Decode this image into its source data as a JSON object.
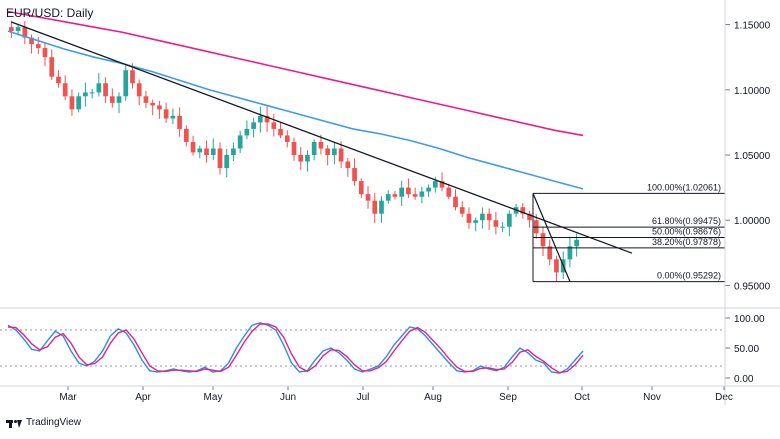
{
  "header": {
    "title": "EUR/USD: Daily"
  },
  "footer": {
    "brand": "TradingView"
  },
  "colors": {
    "candle_up": "#26a69a",
    "candle_down": "#ef5350",
    "ma_fast": "#3d9bf0",
    "ma_slow": "#e91e8c",
    "trendline": "#131722",
    "stoch_k": "#2b8fe6",
    "stoch_d": "#e91e8c"
  },
  "chart_data": [
    {
      "type": "candlestick",
      "title": "EUR/USD: Daily",
      "x_labels": [
        "Mar",
        "Apr",
        "May",
        "Jun",
        "Jul",
        "Aug",
        "Sep",
        "Oct",
        "Nov",
        "Dec"
      ],
      "y_ticks": [
        "1.15000",
        "1.10000",
        "1.05000",
        "1.00000",
        "0.95000"
      ],
      "ylim": [
        0.935,
        1.165
      ],
      "grid": false,
      "ohlc_path": [
        1.145,
        1.148,
        1.14,
        1.135,
        1.132,
        1.125,
        1.11,
        1.105,
        1.095,
        1.085,
        1.095,
        1.098,
        1.098,
        1.105,
        1.095,
        1.09,
        1.095,
        1.115,
        1.105,
        1.095,
        1.09,
        1.088,
        1.085,
        1.078,
        1.08,
        1.07,
        1.06,
        1.052,
        1.055,
        1.05,
        1.055,
        1.04,
        1.05,
        1.055,
        1.065,
        1.07,
        1.075,
        1.08,
        1.075,
        1.07,
        1.065,
        1.06,
        1.05,
        1.045,
        1.05,
        1.06,
        1.055,
        1.05,
        1.055,
        1.045,
        1.04,
        1.03,
        1.02,
        1.015,
        1.005,
        1.015,
        1.02,
        1.018,
        1.025,
        1.02,
        1.018,
        1.022,
        1.025,
        1.03,
        1.025,
        1.018,
        1.01,
        1.005,
        0.998,
        1.0,
        1.005,
        1.0,
        0.995,
        0.995,
        1.005,
        1.01,
        1.005,
        1.0,
        0.99,
        0.98,
        0.97,
        0.96,
        0.97,
        0.98,
        0.985
      ],
      "overlays": [
        {
          "name": "",
          "type": "ma",
          "color": "#e91e8c",
          "values": [
            1.16,
            1.156,
            1.152,
            1.148,
            1.144,
            1.139,
            1.134,
            1.129,
            1.124,
            1.119,
            1.114,
            1.109,
            1.104,
            1.099,
            1.094,
            1.089,
            1.084,
            1.079,
            1.074,
            1.069,
            1.065
          ]
        },
        {
          "name": "",
          "type": "ma",
          "color": "#3d9bf0",
          "values": [
            1.145,
            1.138,
            1.131,
            1.125,
            1.12,
            1.114,
            1.107,
            1.1,
            1.094,
            1.088,
            1.082,
            1.076,
            1.07,
            1.066,
            1.061,
            1.055,
            1.048,
            1.042,
            1.036,
            1.03,
            1.024
          ]
        }
      ],
      "trendline": {
        "from": {
          "bar": 0,
          "price": 1.152
        },
        "to": {
          "bar": 90,
          "price": 0.987
        }
      },
      "fib_levels": [
        {
          "label": "100.00%(1.02061)",
          "price": 1.02061
        },
        {
          "label": "61.80%(0.99475)",
          "price": 0.99475
        },
        {
          "label": "50.00%(0.98676)",
          "price": 0.98676
        },
        {
          "label": "38.20%(0.97878)",
          "price": 0.97878
        },
        {
          "label": "0.00%(0.95292)",
          "price": 0.95292
        }
      ]
    },
    {
      "type": "line",
      "title": "",
      "y_ticks": [
        "100.00",
        "50.00",
        "0.00"
      ],
      "ylim": [
        0,
        100
      ],
      "reference_lines": [
        80,
        20
      ],
      "series": [
        {
          "name": "",
          "color": "#2b8fe6",
          "values": [
            88,
            80,
            65,
            48,
            45,
            62,
            78,
            70,
            45,
            25,
            20,
            28,
            45,
            70,
            82,
            75,
            55,
            30,
            12,
            10,
            12,
            15,
            12,
            10,
            12,
            18,
            10,
            12,
            25,
            50,
            70,
            88,
            92,
            88,
            80,
            55,
            25,
            10,
            12,
            30,
            45,
            50,
            42,
            30,
            15,
            10,
            15,
            20,
            35,
            55,
            70,
            85,
            82,
            70,
            55,
            40,
            25,
            12,
            10,
            12,
            20,
            15,
            12,
            18,
            35,
            50,
            42,
            30,
            25,
            10,
            8,
            15,
            30,
            45
          ]
        },
        {
          "name": "",
          "color": "#e91e8c",
          "values": [
            85,
            84,
            72,
            57,
            47,
            52,
            68,
            74,
            58,
            35,
            22,
            24,
            35,
            58,
            75,
            80,
            65,
            42,
            20,
            12,
            11,
            13,
            13,
            12,
            11,
            15,
            13,
            11,
            18,
            38,
            60,
            78,
            90,
            90,
            85,
            68,
            40,
            18,
            11,
            20,
            37,
            47,
            46,
            36,
            22,
            12,
            12,
            17,
            27,
            45,
            62,
            78,
            84,
            76,
            62,
            48,
            32,
            18,
            11,
            11,
            16,
            17,
            14,
            15,
            26,
            43,
            47,
            36,
            28,
            17,
            9,
            11,
            22,
            38
          ]
        }
      ]
    }
  ]
}
